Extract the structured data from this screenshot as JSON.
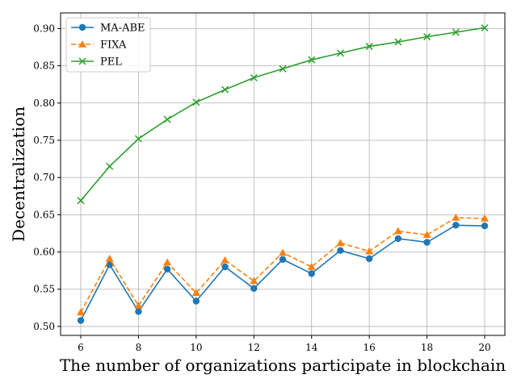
{
  "chart_data": {
    "type": "line",
    "title": "",
    "xlabel": "The number of organizations participate in blockchain",
    "ylabel": "Decentralization",
    "x": [
      6,
      7,
      8,
      9,
      10,
      11,
      12,
      13,
      14,
      15,
      16,
      17,
      18,
      19,
      20
    ],
    "xlim": [
      5.3,
      20.7
    ],
    "ylim": [
      0.488,
      0.921
    ],
    "xticks": [
      6,
      8,
      10,
      12,
      14,
      16,
      18,
      20
    ],
    "yticks": [
      0.5,
      0.55,
      0.6,
      0.65,
      0.7,
      0.75,
      0.8,
      0.85,
      0.9
    ],
    "grid": true,
    "legend_position": "top-left",
    "series": [
      {
        "name": "MA-ABE",
        "color": "#1f77b4",
        "marker": "circle",
        "line_style": "solid",
        "values": [
          0.508,
          0.583,
          0.52,
          0.577,
          0.534,
          0.58,
          0.551,
          0.59,
          0.571,
          0.602,
          0.591,
          0.618,
          0.613,
          0.636,
          0.635
        ]
      },
      {
        "name": "FIXA",
        "color": "#ff7f0e",
        "marker": "triangle",
        "line_style": "dashed",
        "values": [
          0.519,
          0.591,
          0.528,
          0.586,
          0.545,
          0.589,
          0.561,
          0.599,
          0.58,
          0.612,
          0.601,
          0.628,
          0.623,
          0.646,
          0.645
        ]
      },
      {
        "name": "PEL",
        "color": "#2ca02c",
        "marker": "x",
        "line_style": "solid",
        "values": [
          0.669,
          0.715,
          0.752,
          0.778,
          0.801,
          0.818,
          0.834,
          0.846,
          0.858,
          0.867,
          0.876,
          0.882,
          0.889,
          0.895,
          0.901
        ]
      }
    ]
  }
}
